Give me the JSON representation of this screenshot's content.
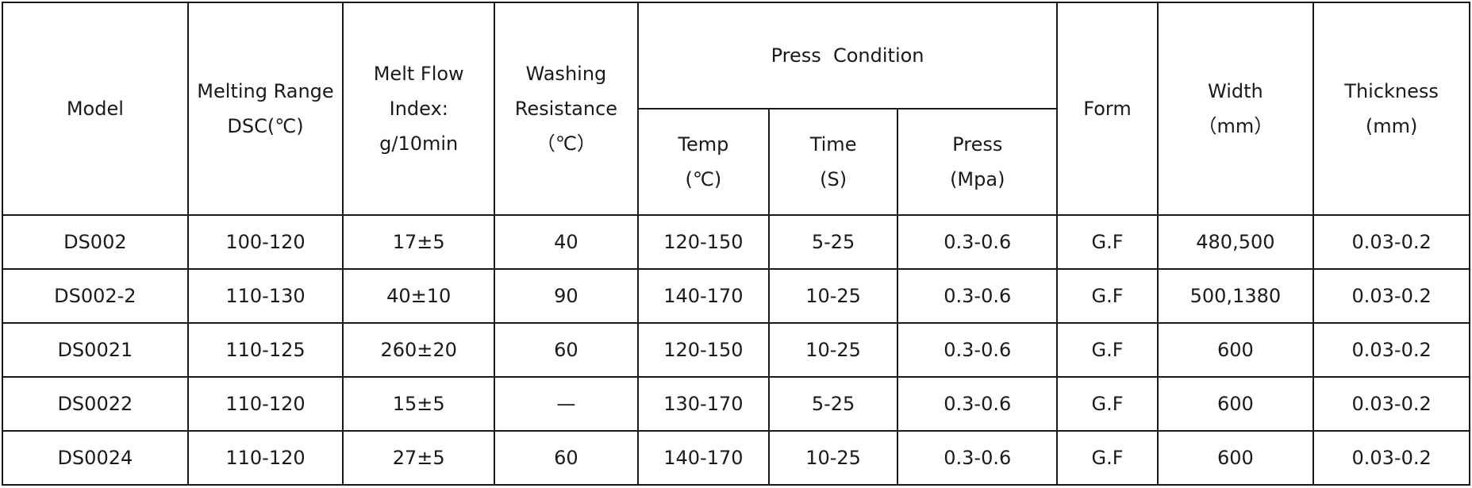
{
  "table": {
    "headers": {
      "model": [
        "Model"
      ],
      "melting_range": [
        "Melting Range",
        "DSC(℃)"
      ],
      "melt_flow_index": [
        "Melt Flow",
        "Index:",
        "g/10min"
      ],
      "washing_resistance": [
        "Washing",
        "Resistance",
        "（℃）"
      ],
      "press_condition": "Press  Condition",
      "temp": [
        "Temp",
        "(℃)"
      ],
      "time": [
        "Time",
        "(S)"
      ],
      "press": [
        "Press",
        "(Mpa)"
      ],
      "form": [
        "Form"
      ],
      "width": [
        "Width",
        "（mm）"
      ],
      "thickness": [
        "Thickness",
        "(mm)"
      ]
    },
    "rows": [
      [
        "DS002",
        "100-120",
        "17±5",
        "40",
        "120-150",
        "5-25",
        "0.3-0.6",
        "G.F",
        "480,500",
        "0.03-0.2"
      ],
      [
        "DS002-2",
        "110-130",
        "40±10",
        "90",
        "140-170",
        "10-25",
        "0.3-0.6",
        "G.F",
        "500,1380",
        "0.03-0.2"
      ],
      [
        "DS0021",
        "110-125",
        "260±20",
        "60",
        "120-150",
        "10-25",
        "0.3-0.6",
        "G.F",
        "600",
        "0.03-0.2"
      ],
      [
        "DS0022",
        "110-120",
        "15±5",
        "—",
        "130-170",
        "5-25",
        "0.3-0.6",
        "G.F",
        "600",
        "0.03-0.2"
      ],
      [
        "DS0024",
        "110-120",
        "27±5",
        "60",
        "140-170",
        "10-25",
        "0.3-0.6",
        "G.F",
        "600",
        "0.03-0.2"
      ]
    ]
  }
}
